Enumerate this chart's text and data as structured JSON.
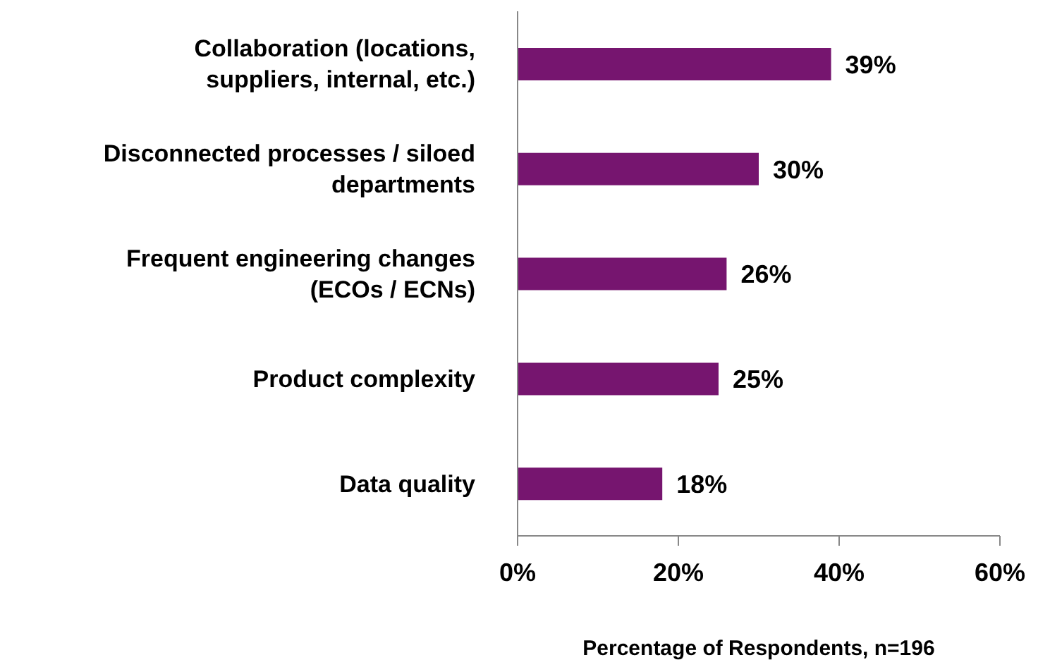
{
  "chart_data": {
    "type": "bar",
    "orientation": "horizontal",
    "xlabel": "Percentage of Respondents, n=196",
    "categories": [
      "Collaboration (locations, suppliers, internal, etc.)",
      "Disconnected processes / siloed departments",
      "Frequent engineering changes (ECOs / ECNs)",
      "Product complexity",
      "Data quality"
    ],
    "values": [
      39,
      30,
      26,
      25,
      18
    ],
    "value_labels": [
      "39%",
      "30%",
      "26%",
      "25%",
      "18%"
    ],
    "color": "#76156f",
    "xlim": [
      0,
      60
    ],
    "xticks": [
      {
        "value": 0,
        "label": "0%"
      },
      {
        "value": 20,
        "label": "20%"
      },
      {
        "value": 40,
        "label": "40%"
      },
      {
        "value": 60,
        "label": "60%"
      }
    ],
    "grid": false,
    "legend": false
  }
}
